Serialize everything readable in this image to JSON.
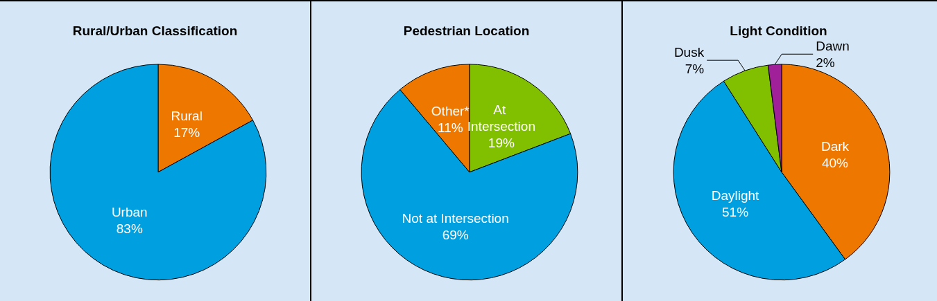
{
  "chart_data": [
    {
      "type": "pie",
      "title": "Rural/Urban Classification",
      "categories": [
        "Rural",
        "Urban"
      ],
      "values": [
        17,
        83
      ],
      "value_labels": [
        "17%",
        "83%"
      ],
      "colors": [
        "#ee7700",
        "#00a0e0"
      ],
      "legend": false
    },
    {
      "type": "pie",
      "title": "Pedestrian Location",
      "categories": [
        "At Intersection",
        "Not at Intersection",
        "Other*"
      ],
      "values": [
        19,
        69,
        11
      ],
      "value_labels": [
        "19%",
        "69%",
        "11%"
      ],
      "colors": [
        "#80c000",
        "#00a0e0",
        "#ee7700"
      ],
      "legend": false
    },
    {
      "type": "pie",
      "title": "Light Condition",
      "categories": [
        "Dark",
        "Daylight",
        "Dusk",
        "Dawn"
      ],
      "values": [
        40,
        51,
        7,
        2
      ],
      "value_labels": [
        "40%",
        "51%",
        "7%",
        "2%"
      ],
      "colors": [
        "#ee7700",
        "#00a0e0",
        "#80c000",
        "#a0209a"
      ],
      "legend": false
    }
  ]
}
